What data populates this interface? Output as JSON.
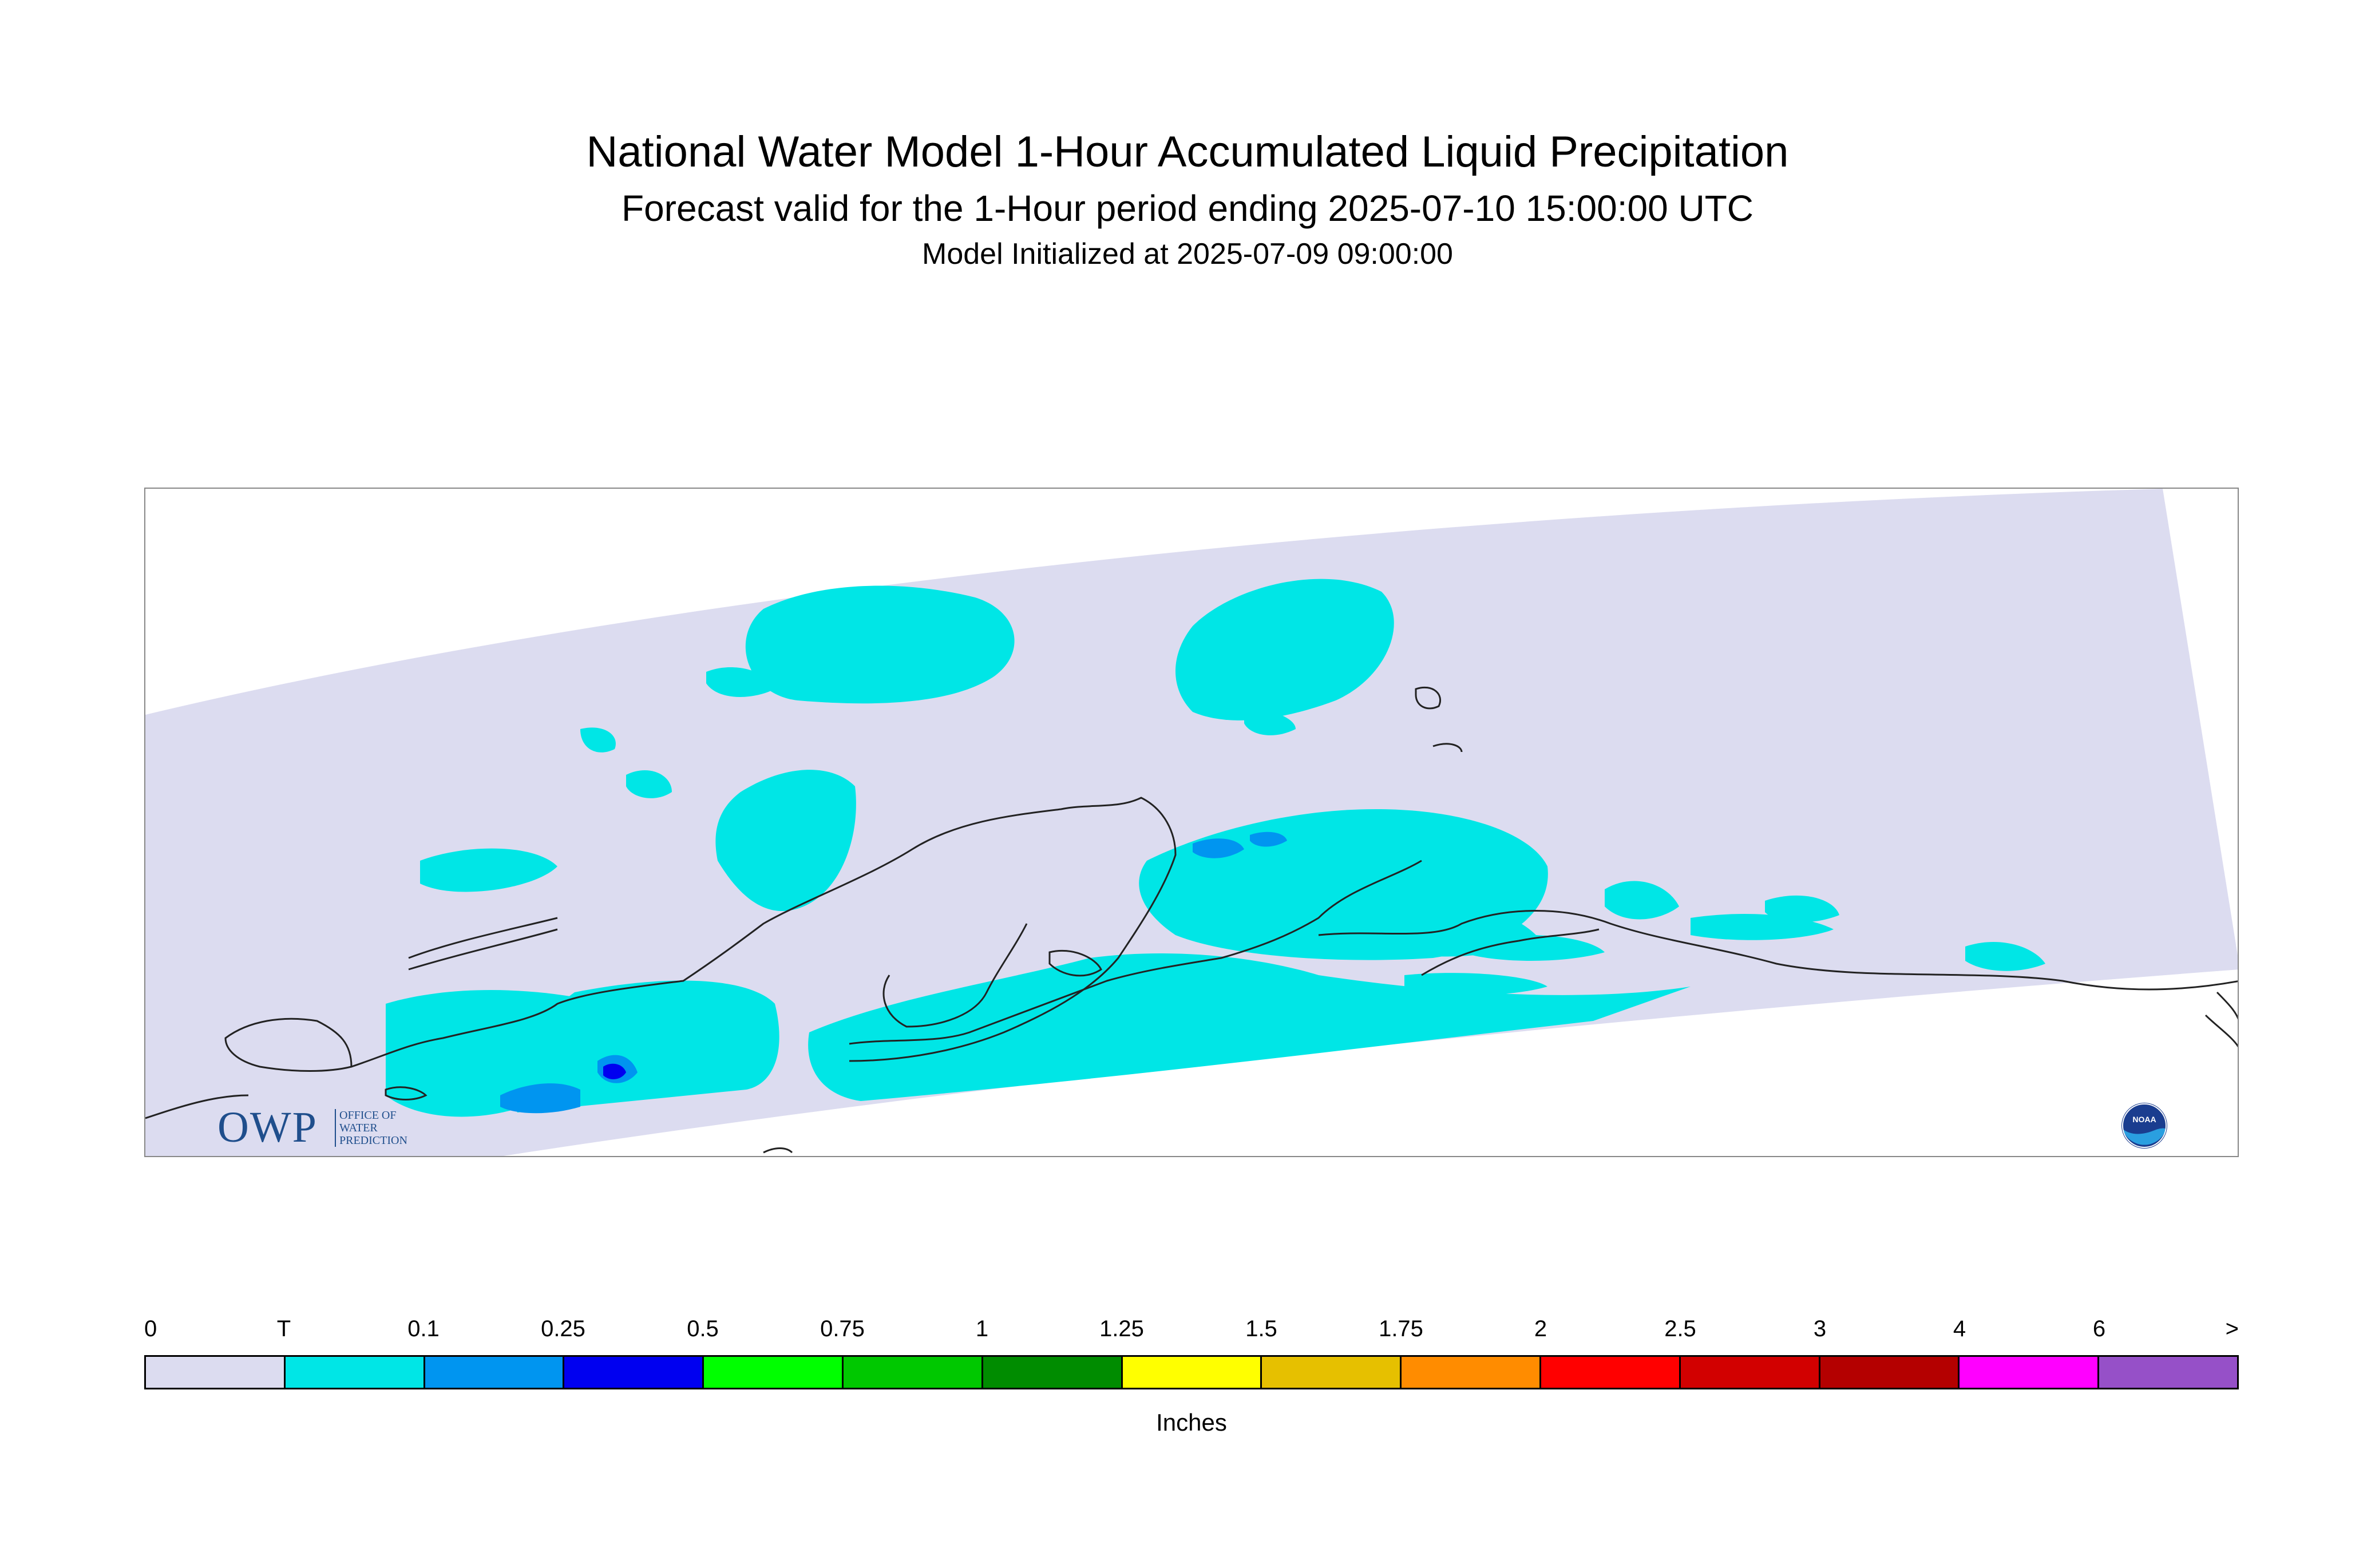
{
  "header": {
    "title": "National Water Model 1-Hour Accumulated Liquid Precipitation",
    "subtitle": "Forecast valid for the 1-Hour period ending 2025-07-10 15:00:00 UTC",
    "init": "Model Initialized at 2025-07-09 09:00:00"
  },
  "logos": {
    "owp_letters": "OWP",
    "owp_text": "OFFICE OF\nWATER\nPREDICTION",
    "noaa_text": "NOAA"
  },
  "legend": {
    "unit": "Inches",
    "labels": [
      "0",
      "T",
      "0.1",
      "0.25",
      "0.5",
      "0.75",
      "1",
      "1.25",
      "1.5",
      "1.75",
      "2",
      "2.5",
      "3",
      "4",
      "6",
      ">"
    ],
    "colors": [
      "#dcdcf0",
      "#00e6e6",
      "#0095f0",
      "#0000f0",
      "#00ff00",
      "#00c800",
      "#008c00",
      "#ffff00",
      "#e6c000",
      "#ff8c00",
      "#ff0000",
      "#d20000",
      "#b40000",
      "#ff00ff",
      "#9650c8"
    ]
  },
  "map": {
    "background_color": "#dcdcf0",
    "coastline_color": "#222222"
  }
}
